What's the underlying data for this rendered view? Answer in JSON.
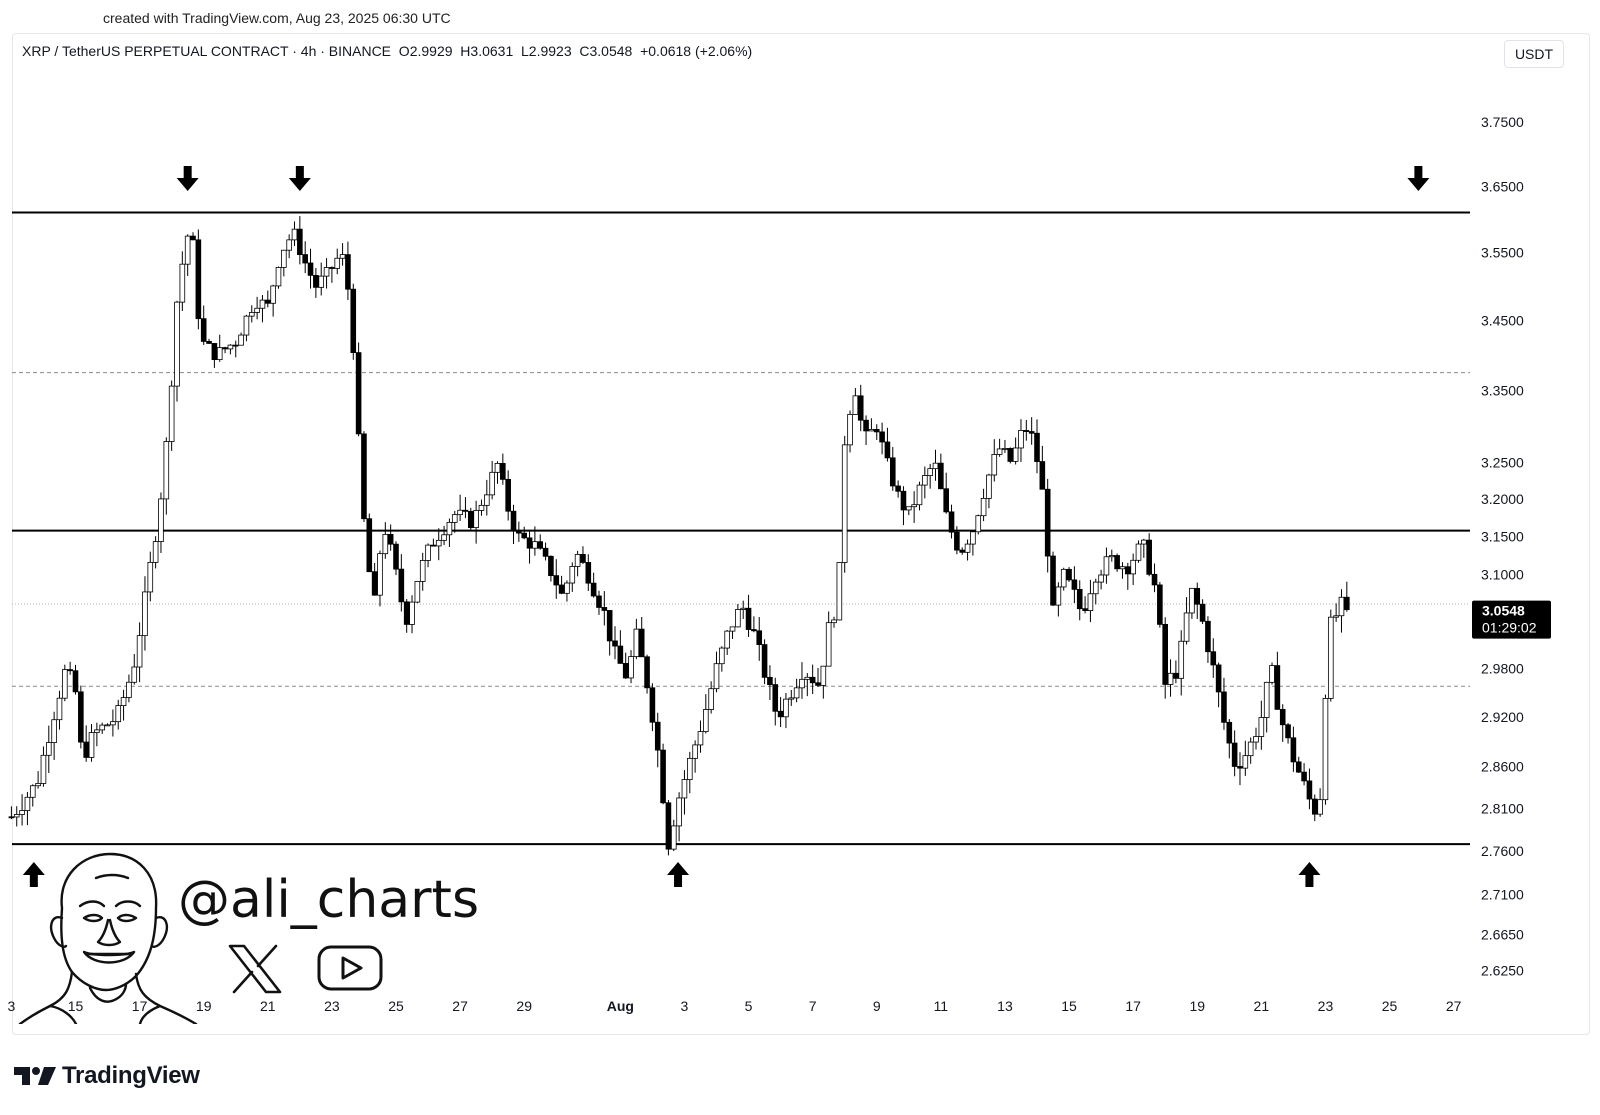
{
  "caption": "created with TradingView.com, Aug 23, 2025 06:30 UTC",
  "header": {
    "symbol_line": "XRP / TetherUS PERPETUAL CONTRACT · 4h · BINANCE  O2.9929  H3.0631  L2.9923  C3.0548  +0.0618 (+2.06%)",
    "currency_button": "USDT"
  },
  "price_badge": {
    "price": "3.0548",
    "countdown": "01:29:02",
    "color": "#000000"
  },
  "watermark": {
    "handle": "@ali_charts",
    "social": [
      "x-icon",
      "youtube-icon"
    ]
  },
  "brand": {
    "name": "TradingView"
  },
  "colors": {
    "up": "#ffffff",
    "down": "#000000",
    "wick": "#000000",
    "lines": "#000000"
  },
  "chart_data": {
    "type": "candlestick",
    "timeframe": "4h",
    "ylim": [
      2.6,
      3.8
    ],
    "y_scale": "log",
    "y_ticks": [
      3.75,
      3.65,
      3.55,
      3.45,
      3.35,
      3.25,
      3.2,
      3.15,
      3.1,
      2.98,
      2.92,
      2.86,
      2.81,
      2.76,
      2.71,
      2.665,
      2.625
    ],
    "y_tick_labels": [
      "3.7500",
      "3.6500",
      "3.5500",
      "3.4500",
      "3.3500",
      "3.2500",
      "3.2000",
      "3.1500",
      "3.1000",
      "2.9800",
      "2.9200",
      "2.8600",
      "2.8100",
      "2.7600",
      "2.7100",
      "2.6650",
      "2.6250"
    ],
    "x_ticks": [
      "3",
      "15",
      "17",
      "19",
      "21",
      "23",
      "25",
      "27",
      "29",
      "Aug",
      "3",
      "5",
      "7",
      "9",
      "11",
      "13",
      "15",
      "17",
      "19",
      "21",
      "23",
      "25",
      "27"
    ],
    "x_tick_day_index": [
      10,
      12,
      14,
      16,
      18,
      20,
      22,
      24,
      26,
      29,
      31,
      33,
      35,
      37,
      39,
      41,
      43,
      45,
      47,
      49,
      51,
      53,
      55
    ],
    "horizontal_levels": [
      {
        "price": 3.61,
        "style": "solid"
      },
      {
        "price": 3.375,
        "style": "dashed"
      },
      {
        "price": 3.158,
        "style": "solid"
      },
      {
        "price": 3.062,
        "style": "dotted"
      },
      {
        "price": 2.958,
        "style": "dashed"
      },
      {
        "price": 2.768,
        "style": "solid"
      }
    ],
    "markers": [
      {
        "type": "down-arrow",
        "day_index": 15.5
      },
      {
        "type": "down-arrow",
        "day_index": 19.0
      },
      {
        "type": "down-arrow",
        "day_index": 53.9
      },
      {
        "type": "up-arrow",
        "day_index": 10.7
      },
      {
        "type": "up-arrow",
        "day_index": 30.8
      },
      {
        "type": "up-arrow",
        "day_index": 50.5
      }
    ],
    "anchors": [
      {
        "day_index": 10.0,
        "price": 2.8
      },
      {
        "day_index": 10.8,
        "price": 2.84
      },
      {
        "day_index": 11.3,
        "price": 2.92
      },
      {
        "day_index": 11.7,
        "price": 2.98
      },
      {
        "day_index": 12.0,
        "price": 2.95
      },
      {
        "day_index": 12.2,
        "price": 2.87
      },
      {
        "day_index": 12.6,
        "price": 2.9
      },
      {
        "day_index": 13.3,
        "price": 2.92
      },
      {
        "day_index": 13.8,
        "price": 2.98
      },
      {
        "day_index": 14.1,
        "price": 3.05
      },
      {
        "day_index": 14.6,
        "price": 3.18
      },
      {
        "day_index": 14.9,
        "price": 3.3
      },
      {
        "day_index": 15.2,
        "price": 3.5
      },
      {
        "day_index": 15.6,
        "price": 3.6
      },
      {
        "day_index": 15.9,
        "price": 3.42
      },
      {
        "day_index": 16.4,
        "price": 3.4
      },
      {
        "day_index": 17.0,
        "price": 3.42
      },
      {
        "day_index": 17.6,
        "price": 3.48
      },
      {
        "day_index": 18.0,
        "price": 3.47
      },
      {
        "day_index": 18.4,
        "price": 3.55
      },
      {
        "day_index": 18.8,
        "price": 3.58
      },
      {
        "day_index": 19.2,
        "price": 3.53
      },
      {
        "day_index": 19.5,
        "price": 3.5
      },
      {
        "day_index": 19.9,
        "price": 3.52
      },
      {
        "day_index": 20.3,
        "price": 3.55
      },
      {
        "day_index": 20.6,
        "price": 3.47
      },
      {
        "day_index": 20.8,
        "price": 3.3
      },
      {
        "day_index": 21.0,
        "price": 3.17
      },
      {
        "day_index": 21.3,
        "price": 3.05
      },
      {
        "day_index": 21.6,
        "price": 3.17
      },
      {
        "day_index": 21.9,
        "price": 3.12
      },
      {
        "day_index": 22.3,
        "price": 3.04
      },
      {
        "day_index": 22.7,
        "price": 3.1
      },
      {
        "day_index": 23.1,
        "price": 3.14
      },
      {
        "day_index": 23.8,
        "price": 3.18
      },
      {
        "day_index": 24.4,
        "price": 3.17
      },
      {
        "day_index": 24.9,
        "price": 3.22
      },
      {
        "day_index": 25.2,
        "price": 3.25
      },
      {
        "day_index": 25.4,
        "price": 3.2
      },
      {
        "day_index": 25.8,
        "price": 3.15
      },
      {
        "day_index": 26.3,
        "price": 3.14
      },
      {
        "day_index": 26.9,
        "price": 3.1
      },
      {
        "day_index": 27.2,
        "price": 3.07
      },
      {
        "day_index": 27.6,
        "price": 3.13
      },
      {
        "day_index": 28.0,
        "price": 3.1
      },
      {
        "day_index": 28.5,
        "price": 3.05
      },
      {
        "day_index": 28.8,
        "price": 3.0
      },
      {
        "day_index": 29.2,
        "price": 2.97
      },
      {
        "day_index": 29.5,
        "price": 3.02
      },
      {
        "day_index": 29.9,
        "price": 2.95
      },
      {
        "day_index": 30.2,
        "price": 2.87
      },
      {
        "day_index": 30.5,
        "price": 2.77
      },
      {
        "day_index": 30.8,
        "price": 2.82
      },
      {
        "day_index": 31.2,
        "price": 2.87
      },
      {
        "day_index": 31.6,
        "price": 2.92
      },
      {
        "day_index": 32.0,
        "price": 2.98
      },
      {
        "day_index": 32.4,
        "price": 3.03
      },
      {
        "day_index": 32.8,
        "price": 3.06
      },
      {
        "day_index": 33.2,
        "price": 3.02
      },
      {
        "day_index": 33.6,
        "price": 2.96
      },
      {
        "day_index": 33.9,
        "price": 2.92
      },
      {
        "day_index": 34.3,
        "price": 2.95
      },
      {
        "day_index": 34.7,
        "price": 2.98
      },
      {
        "day_index": 35.2,
        "price": 2.96
      },
      {
        "day_index": 35.5,
        "price": 3.03
      },
      {
        "day_index": 35.8,
        "price": 3.07
      },
      {
        "day_index": 36.0,
        "price": 3.28
      },
      {
        "day_index": 36.3,
        "price": 3.36
      },
      {
        "day_index": 36.6,
        "price": 3.28
      },
      {
        "day_index": 37.0,
        "price": 3.3
      },
      {
        "day_index": 37.3,
        "price": 3.25
      },
      {
        "day_index": 37.7,
        "price": 3.2
      },
      {
        "day_index": 38.0,
        "price": 3.18
      },
      {
        "day_index": 38.4,
        "price": 3.22
      },
      {
        "day_index": 38.8,
        "price": 3.25
      },
      {
        "day_index": 39.2,
        "price": 3.17
      },
      {
        "day_index": 39.6,
        "price": 3.13
      },
      {
        "day_index": 40.0,
        "price": 3.16
      },
      {
        "day_index": 40.4,
        "price": 3.22
      },
      {
        "day_index": 40.8,
        "price": 3.27
      },
      {
        "day_index": 41.2,
        "price": 3.25
      },
      {
        "day_index": 41.6,
        "price": 3.3
      },
      {
        "day_index": 41.9,
        "price": 3.28
      },
      {
        "day_index": 42.2,
        "price": 3.2
      },
      {
        "day_index": 42.5,
        "price": 3.05
      },
      {
        "day_index": 42.8,
        "price": 3.1
      },
      {
        "day_index": 43.1,
        "price": 3.08
      },
      {
        "day_index": 43.4,
        "price": 3.05
      },
      {
        "day_index": 43.8,
        "price": 3.1
      },
      {
        "day_index": 44.3,
        "price": 3.12
      },
      {
        "day_index": 44.8,
        "price": 3.11
      },
      {
        "day_index": 45.3,
        "price": 3.14
      },
      {
        "day_index": 45.7,
        "price": 3.08
      },
      {
        "day_index": 46.0,
        "price": 2.96
      },
      {
        "day_index": 46.4,
        "price": 2.98
      },
      {
        "day_index": 46.8,
        "price": 3.08
      },
      {
        "day_index": 47.1,
        "price": 3.05
      },
      {
        "day_index": 47.5,
        "price": 2.98
      },
      {
        "day_index": 47.9,
        "price": 2.9
      },
      {
        "day_index": 48.2,
        "price": 2.86
      },
      {
        "day_index": 48.6,
        "price": 2.88
      },
      {
        "day_index": 49.0,
        "price": 2.92
      },
      {
        "day_index": 49.3,
        "price": 2.98
      },
      {
        "day_index": 49.6,
        "price": 2.92
      },
      {
        "day_index": 49.9,
        "price": 2.88
      },
      {
        "day_index": 50.2,
        "price": 2.85
      },
      {
        "day_index": 50.5,
        "price": 2.82
      },
      {
        "day_index": 50.8,
        "price": 2.8
      },
      {
        "day_index": 51.1,
        "price": 3.03
      },
      {
        "day_index": 51.5,
        "price": 3.06
      },
      {
        "day_index": 51.8,
        "price": 3.0548
      }
    ]
  }
}
